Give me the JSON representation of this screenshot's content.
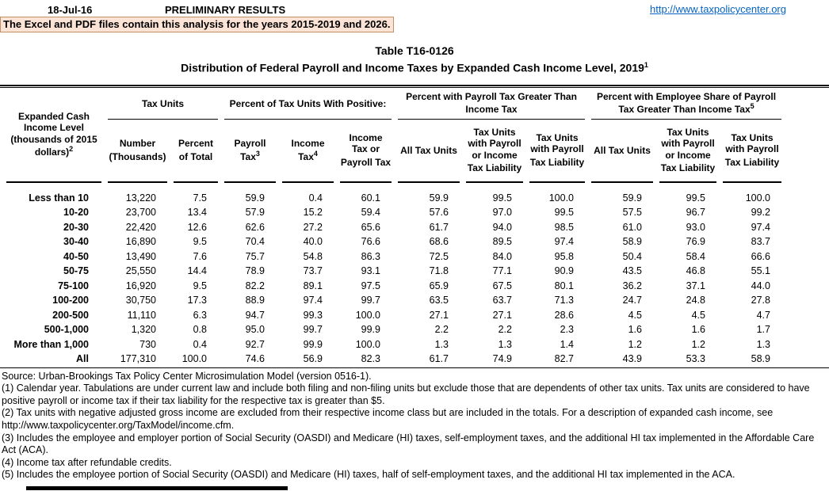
{
  "topbar": {
    "date": "18-Jul-16",
    "status": "PRELIMINARY RESULTS",
    "link": "http://www.taxpolicycenter.org"
  },
  "note": "The Excel and PDF files contain this analysis for the years 2015-2019 and 2026.",
  "title": {
    "line1": "Table T16-0126",
    "line2": "Distribution of Federal Payroll and Income Taxes by Expanded Cash Income Level, 2019",
    "line2_sup": "1"
  },
  "table": {
    "row_header": {
      "label": "Expanded Cash Income Level (thousands of 2015 dollars)",
      "sup": "2"
    },
    "groups": [
      {
        "label": "Tax Units",
        "sup": ""
      },
      {
        "label": "Percent of Tax Units With Positive:",
        "sup": ""
      },
      {
        "label": "Percent with Payroll Tax Greater Than Income Tax",
        "sup": ""
      },
      {
        "label": "Percent with Employee Share of Payroll Tax Greater Than Income Tax",
        "sup": "5"
      }
    ],
    "columns": [
      {
        "label": "Number (Thousands)",
        "sup": ""
      },
      {
        "label": "Percent of Total",
        "sup": ""
      },
      {
        "label": "Payroll Tax",
        "sup": "3"
      },
      {
        "label": "Income Tax",
        "sup": "4"
      },
      {
        "label": "Income Tax or Payroll Tax",
        "sup": ""
      },
      {
        "label": "All Tax Units",
        "sup": ""
      },
      {
        "label": "Tax Units with Payroll or Income Tax Liability",
        "sup": ""
      },
      {
        "label": "Tax Units with Payroll Tax Liability",
        "sup": ""
      },
      {
        "label": "All Tax Units",
        "sup": ""
      },
      {
        "label": "Tax Units with Payroll or Income Tax Liability",
        "sup": ""
      },
      {
        "label": "Tax Units with Payroll Tax Liability",
        "sup": ""
      }
    ],
    "rows": [
      {
        "label": "Less than 10",
        "values": [
          "13,220",
          "7.5",
          "59.9",
          "0.4",
          "60.1",
          "59.9",
          "99.5",
          "100.0",
          "59.9",
          "99.5",
          "100.0"
        ]
      },
      {
        "label": "10-20",
        "values": [
          "23,700",
          "13.4",
          "57.9",
          "15.2",
          "59.4",
          "57.6",
          "97.0",
          "99.5",
          "57.5",
          "96.7",
          "99.2"
        ]
      },
      {
        "label": "20-30",
        "values": [
          "22,420",
          "12.6",
          "62.6",
          "27.2",
          "65.6",
          "61.7",
          "94.0",
          "98.5",
          "61.0",
          "93.0",
          "97.4"
        ]
      },
      {
        "label": "30-40",
        "values": [
          "16,890",
          "9.5",
          "70.4",
          "40.0",
          "76.6",
          "68.6",
          "89.5",
          "97.4",
          "58.9",
          "76.9",
          "83.7"
        ]
      },
      {
        "label": "40-50",
        "values": [
          "13,490",
          "7.6",
          "75.7",
          "54.8",
          "86.3",
          "72.5",
          "84.0",
          "95.8",
          "50.4",
          "58.4",
          "66.6"
        ]
      },
      {
        "label": "50-75",
        "values": [
          "25,550",
          "14.4",
          "78.9",
          "73.7",
          "93.1",
          "71.8",
          "77.1",
          "90.9",
          "43.5",
          "46.8",
          "55.1"
        ]
      },
      {
        "label": "75-100",
        "values": [
          "16,920",
          "9.5",
          "82.2",
          "89.1",
          "97.5",
          "65.9",
          "67.5",
          "80.1",
          "36.2",
          "37.1",
          "44.0"
        ]
      },
      {
        "label": "100-200",
        "values": [
          "30,750",
          "17.3",
          "88.9",
          "97.4",
          "99.7",
          "63.5",
          "63.7",
          "71.3",
          "24.7",
          "24.8",
          "27.8"
        ]
      },
      {
        "label": "200-500",
        "values": [
          "11,110",
          "6.3",
          "94.7",
          "99.3",
          "100.0",
          "27.1",
          "27.1",
          "28.6",
          "4.5",
          "4.5",
          "4.7"
        ]
      },
      {
        "label": "500-1,000",
        "values": [
          "1,320",
          "0.8",
          "95.0",
          "99.7",
          "99.9",
          "2.2",
          "2.2",
          "2.3",
          "1.6",
          "1.6",
          "1.7"
        ]
      },
      {
        "label": "More than 1,000",
        "values": [
          "730",
          "0.4",
          "92.7",
          "99.9",
          "100.0",
          "1.3",
          "1.3",
          "1.4",
          "1.2",
          "1.2",
          "1.3"
        ]
      },
      {
        "label": "All",
        "values": [
          "177,310",
          "100.0",
          "74.6",
          "56.9",
          "82.3",
          "61.7",
          "74.9",
          "82.7",
          "43.9",
          "53.3",
          "58.9"
        ]
      }
    ]
  },
  "footnotes": {
    "source": "Source: Urban-Brookings Tax Policy Center Microsimulation Model (version 0516-1).",
    "items": [
      "(1) Calendar year. Tabulations are under current law and include both filing and non-filing units but exclude those that are dependents of other tax units.  Tax units are considered to have positive payroll or income tax if their tax liability for the respective tax is greater than $5.",
      "(2) Tax units with negative adjusted gross income are excluded from their respective income class but are included in the totals. For a description of expanded cash income, see http://www.taxpolicycenter.org/TaxModel/income.cfm.",
      "(3) Includes the employee and employer portion of Social Security (OASDI) and Medicare (HI) taxes, self-employment taxes, and the additional HI tax implemented in the Affordable Care Act (ACA).",
      "(4) Income tax after refundable credits.",
      "(5) Includes the employee portion of Social Security (OASDI) and Medicare (HI) taxes, half of self-employment taxes, and the additional HI tax implemented in the ACA."
    ]
  },
  "colors": {
    "text": "#000000",
    "link": "#0563C1",
    "note_bg": "#FBE3D5",
    "note_border": "#BF8F68"
  }
}
